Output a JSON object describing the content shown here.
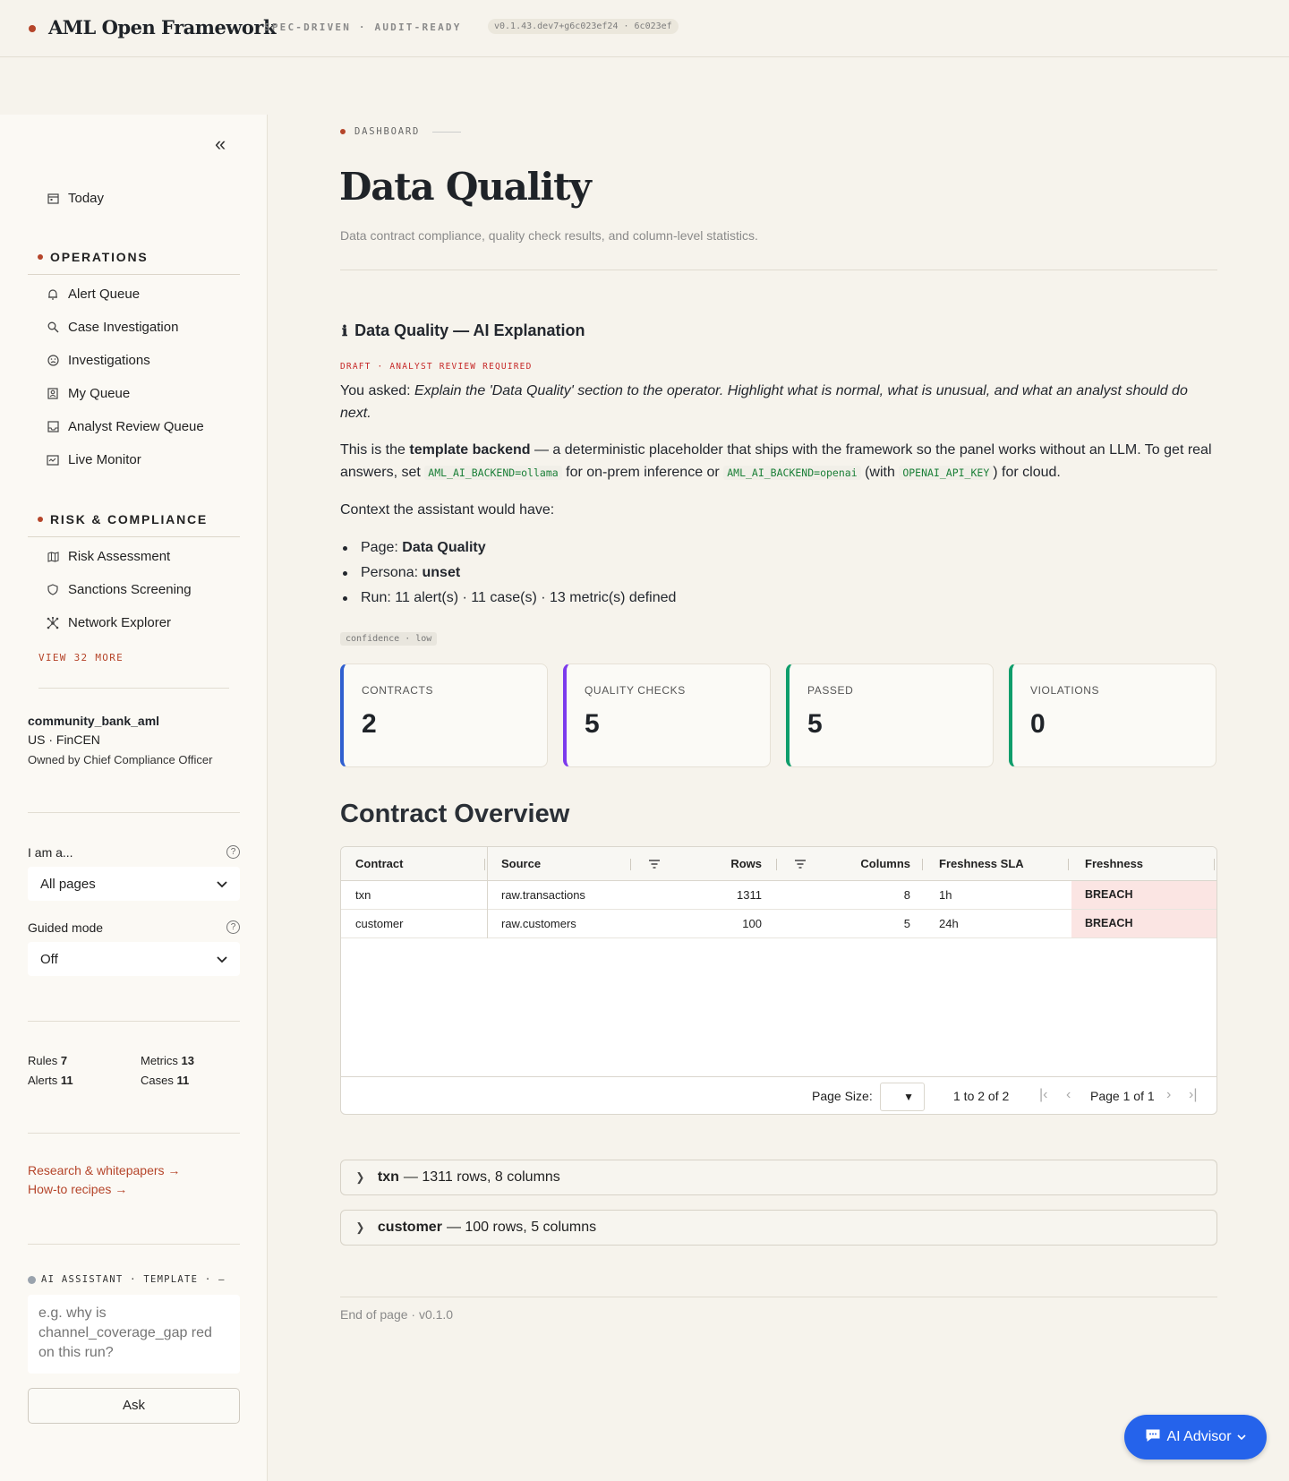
{
  "header": {
    "brand": "AML Open Framework",
    "tagline": "SPEC-DRIVEN · AUDIT-READY",
    "version": "v0.1.43.dev7+g6c023ef24 · 6c023ef"
  },
  "sidebar": {
    "today": "Today",
    "sections": [
      {
        "title": "OPERATIONS",
        "items": [
          {
            "label": "Alert Queue",
            "icon": "bell-icon"
          },
          {
            "label": "Case Investigation",
            "icon": "search-icon"
          },
          {
            "label": "Investigations",
            "icon": "face-icon"
          },
          {
            "label": "My Queue",
            "icon": "badge-icon"
          },
          {
            "label": "Analyst Review Queue",
            "icon": "inbox-icon"
          },
          {
            "label": "Live Monitor",
            "icon": "monitor-icon"
          }
        ]
      },
      {
        "title": "RISK & COMPLIANCE",
        "items": [
          {
            "label": "Risk Assessment",
            "icon": "map-icon"
          },
          {
            "label": "Sanctions Screening",
            "icon": "shield-icon"
          },
          {
            "label": "Network Explorer",
            "icon": "network-icon"
          }
        ]
      }
    ],
    "view_more": "VIEW 32 MORE",
    "tenant": {
      "name": "community_bank_aml",
      "region": "US · FinCEN",
      "owner": "Owned by Chief Compliance Officer"
    },
    "persona": {
      "label": "I am a...",
      "value": "All pages"
    },
    "guided": {
      "label": "Guided mode",
      "value": "Off"
    },
    "stats": {
      "rules_label": "Rules",
      "rules": "7",
      "metrics_label": "Metrics",
      "metrics": "13",
      "alerts_label": "Alerts",
      "alerts": "11",
      "cases_label": "Cases",
      "cases": "11"
    },
    "links": {
      "research": "Research & whitepapers →",
      "recipes": "How-to recipes →"
    },
    "assistant": {
      "label": "AI ASSISTANT · TEMPLATE · —",
      "placeholder": "e.g. why is channel_coverage_gap red on this run?",
      "ask": "Ask"
    }
  },
  "main": {
    "breadcrumb": "DASHBOARD",
    "title": "Data Quality",
    "subtitle": "Data contract compliance, quality check results, and column-level statistics.",
    "ai": {
      "heading": "Data Quality — AI Explanation",
      "status": "DRAFT · ANALYST REVIEW REQUIRED",
      "asked_prefix": "You asked:",
      "asked": "Explain the 'Data Quality' section to the operator. Highlight what is normal, what is unusual, and what an analyst should do next.",
      "p1_a": "This is the",
      "p1_b": "template backend",
      "p1_c": "— a deterministic placeholder that ships with the framework so the panel works without an LLM. To get real answers, set",
      "code1": "AML_AI_BACKEND=ollama",
      "p1_d": "for on-prem inference or",
      "code2": "AML_AI_BACKEND=openai",
      "p1_e": "(with",
      "code3": "OPENAI_API_KEY",
      "p1_f": ") for cloud.",
      "context": "Context the assistant would have:",
      "b1_label": "Page:",
      "b1_value": "Data Quality",
      "b2_label": "Persona:",
      "b2_value": "unset",
      "b3": "Run: 11 alert(s) · 11 case(s) · 13 metric(s) defined",
      "confidence": "confidence · low"
    },
    "kpis": [
      {
        "label": "CONTRACTS",
        "value": "2",
        "color": "#2f5fd0"
      },
      {
        "label": "QUALITY CHECKS",
        "value": "5",
        "color": "#7c3aed"
      },
      {
        "label": "PASSED",
        "value": "5",
        "color": "#0f9d6b"
      },
      {
        "label": "VIOLATIONS",
        "value": "0",
        "color": "#0f9d6b"
      }
    ],
    "table": {
      "title": "Contract Overview",
      "columns": [
        "Contract",
        "Source",
        "Rows",
        "Columns",
        "Freshness SLA",
        "Freshness"
      ],
      "rows": [
        [
          "txn",
          "raw.transactions",
          "1311",
          "8",
          "1h",
          "BREACH"
        ],
        [
          "customer",
          "raw.customers",
          "100",
          "5",
          "24h",
          "BREACH"
        ]
      ],
      "page_size_label": "Page Size:",
      "range": "1 to 2 of 2",
      "page_label": "Page",
      "page": "1",
      "of_label": "of",
      "pages": "1"
    },
    "expanders": [
      {
        "name": "txn",
        "detail": "— 1311 rows, 8 columns"
      },
      {
        "name": "customer",
        "detail": "— 100 rows, 5 columns"
      }
    ],
    "footer": "End of page · v0.1.0"
  },
  "advisor": {
    "label": "AI Advisor",
    "color": "#2563eb"
  }
}
